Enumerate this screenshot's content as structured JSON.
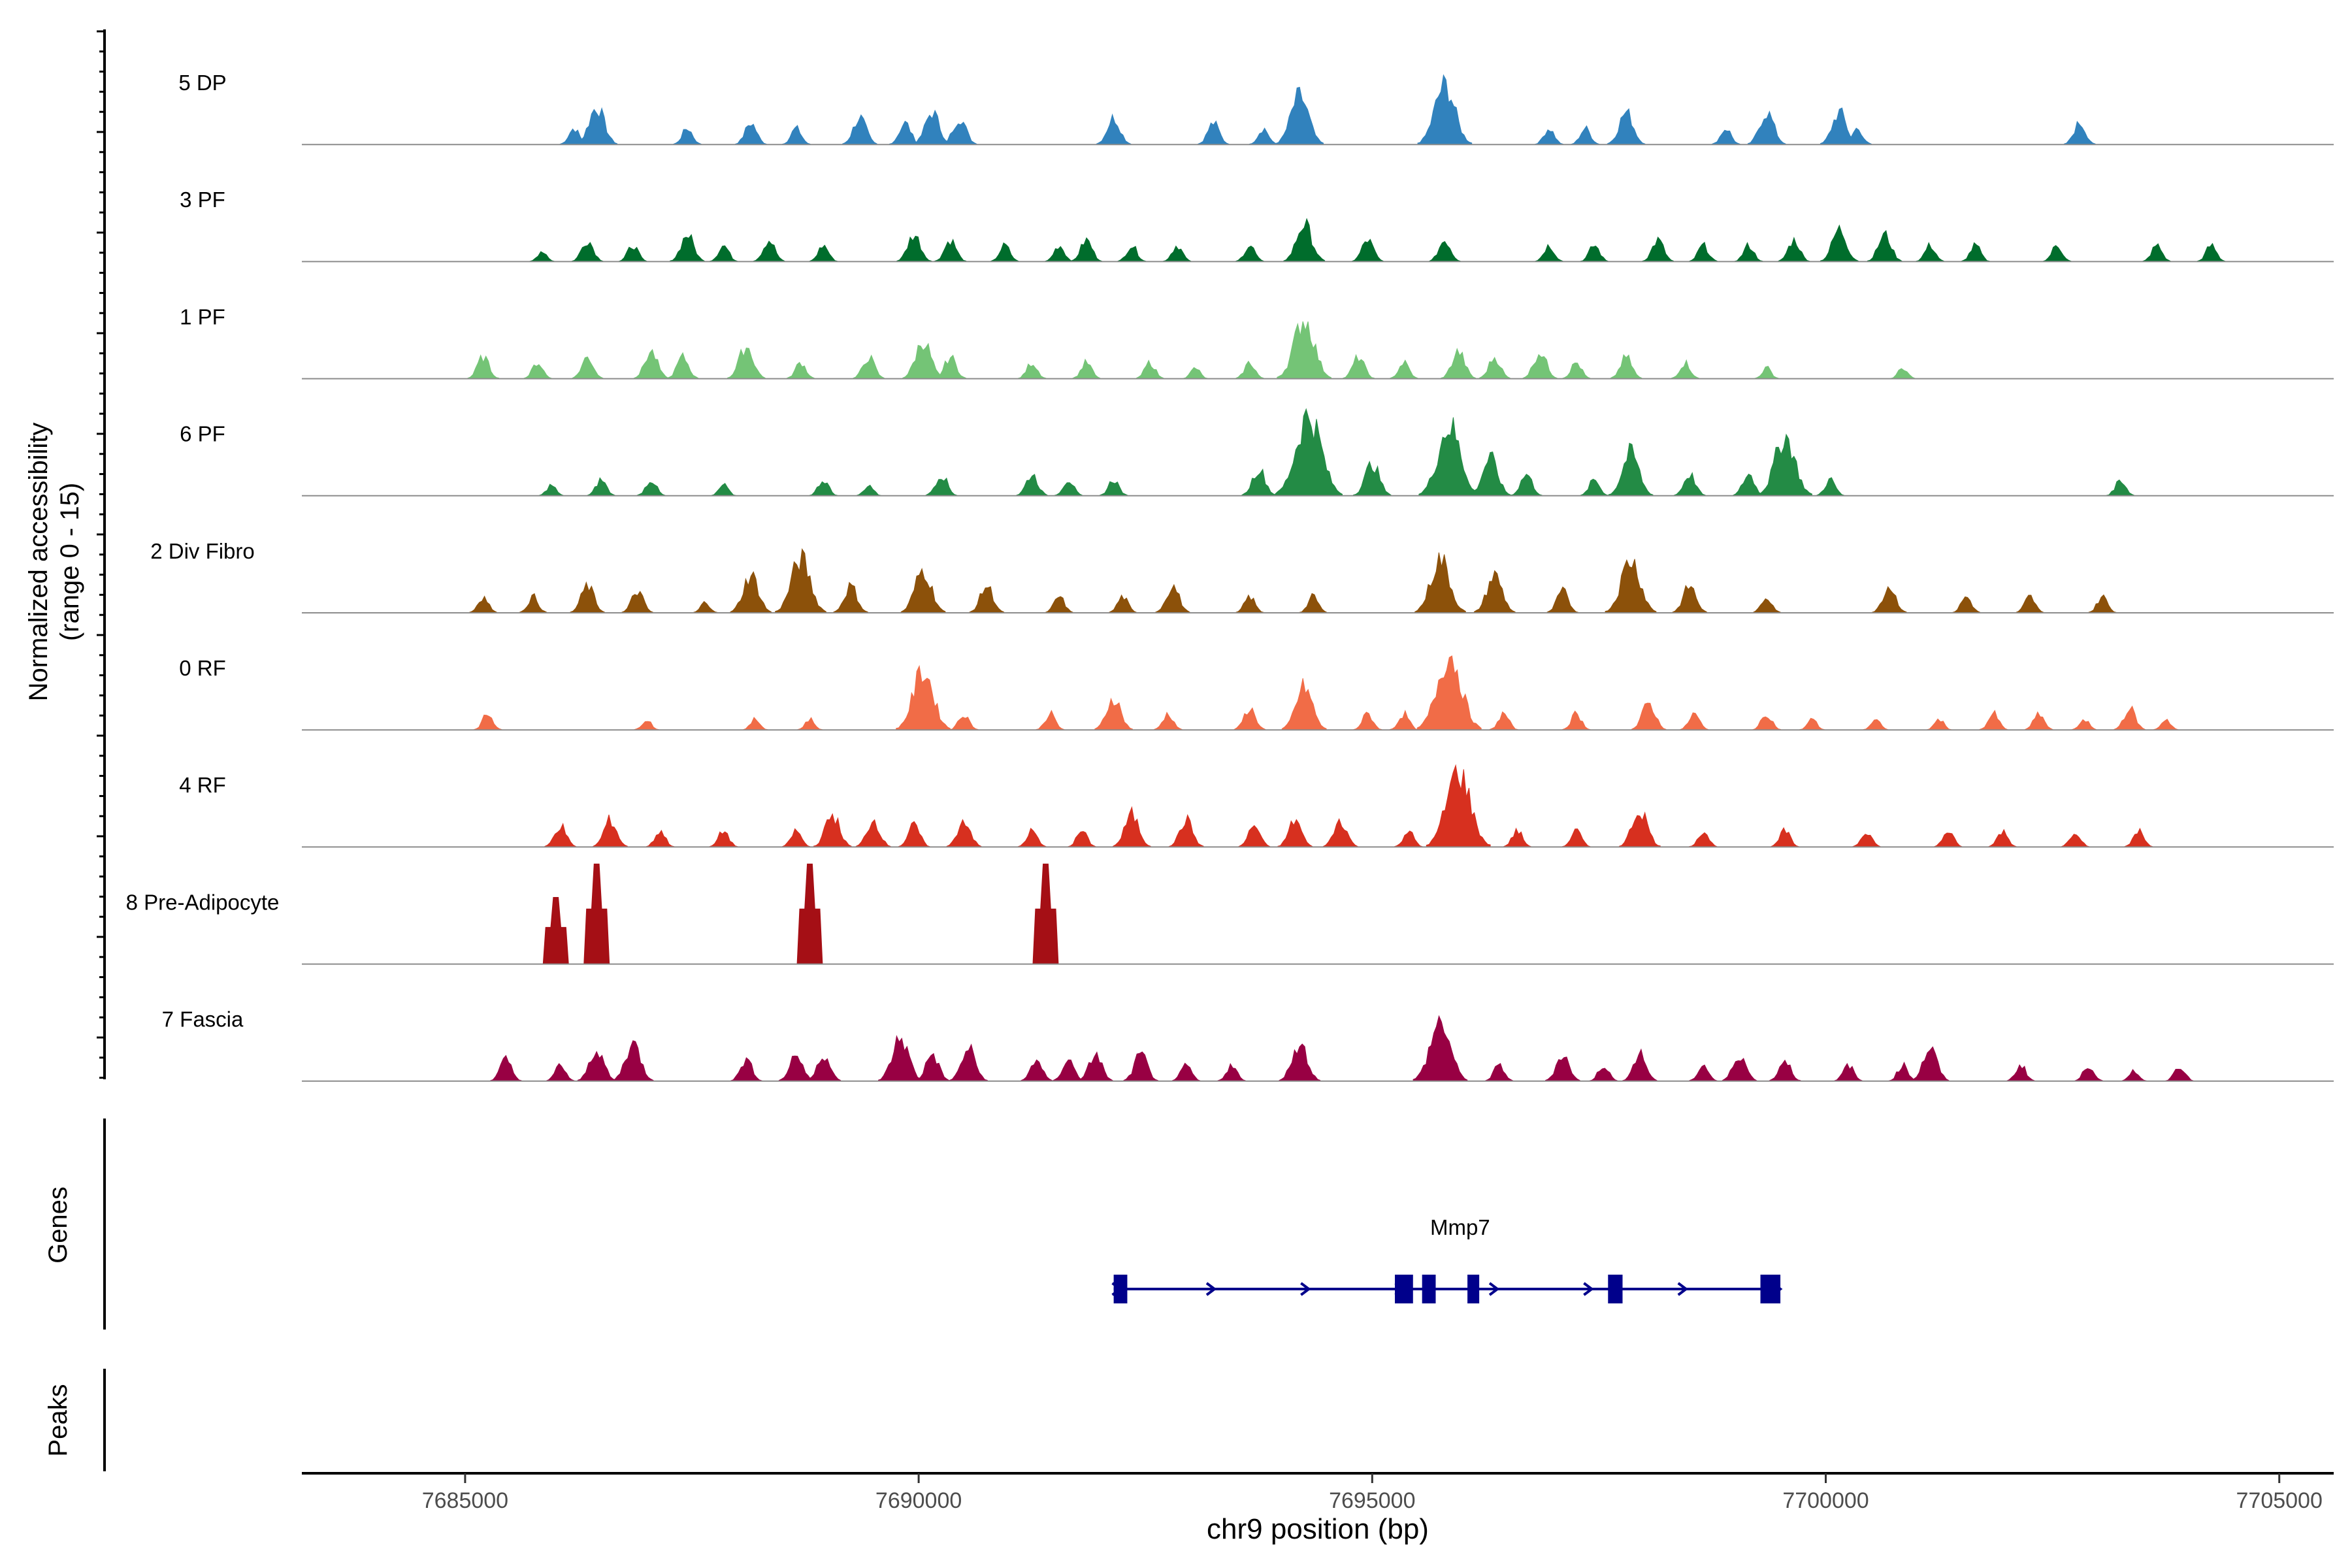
{
  "chart_data": {
    "type": "area",
    "title": "",
    "ylabel_line1": "Normalized accessibility",
    "ylabel_line2": "(range 0 - 15)",
    "xlabel": "chr9 position (bp)",
    "xlim": [
      7683200,
      7705600
    ],
    "ylim": [
      0,
      15
    ],
    "x_ticks": [
      7685000,
      7690000,
      7695000,
      7700000,
      7705000
    ],
    "x_tick_labels": [
      "7685000",
      "7690000",
      "7695000",
      "7700000",
      "7705000"
    ],
    "panel_labels": {
      "genes": "Genes",
      "peaks": "Peaks"
    },
    "series": [
      {
        "name": "5 DP",
        "color": "#3182bd",
        "peaks": [
          [
            7686200,
            3
          ],
          [
            7686450,
            7
          ],
          [
            7687450,
            3
          ],
          [
            7688150,
            4
          ],
          [
            7688650,
            3
          ],
          [
            7689350,
            5
          ],
          [
            7689850,
            4
          ],
          [
            7690150,
            6
          ],
          [
            7690450,
            5
          ],
          [
            7692150,
            5
          ],
          [
            7693250,
            4
          ],
          [
            7693800,
            3
          ],
          [
            7694200,
            9
          ],
          [
            7695800,
            11
          ],
          [
            7696950,
            3
          ],
          [
            7697350,
            3
          ],
          [
            7697800,
            6
          ],
          [
            7698900,
            3
          ],
          [
            7699350,
            6
          ],
          [
            7700150,
            6
          ],
          [
            7700350,
            3
          ],
          [
            7702800,
            4
          ]
        ]
      },
      {
        "name": "3 PF",
        "color": "#006d2c",
        "peaks": [
          [
            7685850,
            2
          ],
          [
            7686350,
            4
          ],
          [
            7686850,
            3
          ],
          [
            7687450,
            5
          ],
          [
            7687850,
            3
          ],
          [
            7688350,
            4
          ],
          [
            7688950,
            3
          ],
          [
            7689950,
            5
          ],
          [
            7690350,
            4
          ],
          [
            7690950,
            3
          ],
          [
            7691550,
            3
          ],
          [
            7691850,
            4
          ],
          [
            7692350,
            3
          ],
          [
            7692850,
            3
          ],
          [
            7693650,
            3
          ],
          [
            7694250,
            7
          ],
          [
            7694950,
            4
          ],
          [
            7695800,
            4
          ],
          [
            7696950,
            3
          ],
          [
            7697450,
            3
          ],
          [
            7698150,
            4
          ],
          [
            7698650,
            3
          ],
          [
            7699150,
            3
          ],
          [
            7699650,
            4
          ],
          [
            7700150,
            6
          ],
          [
            7700650,
            5
          ],
          [
            7701150,
            3
          ],
          [
            7701650,
            3
          ],
          [
            7702550,
            3
          ],
          [
            7703650,
            3
          ],
          [
            7704250,
            3
          ]
        ]
      },
      {
        "name": "1 PF",
        "color": "#74c476",
        "peaks": [
          [
            7685200,
            4
          ],
          [
            7685800,
            3
          ],
          [
            7686350,
            4
          ],
          [
            7687050,
            5
          ],
          [
            7687400,
            4
          ],
          [
            7688100,
            6
          ],
          [
            7688700,
            3
          ],
          [
            7689450,
            4
          ],
          [
            7690050,
            7
          ],
          [
            7690350,
            4
          ],
          [
            7691250,
            3
          ],
          [
            7691850,
            3
          ],
          [
            7692550,
            3
          ],
          [
            7693050,
            2
          ],
          [
            7693650,
            3
          ],
          [
            7694250,
            11
          ],
          [
            7694850,
            4
          ],
          [
            7695350,
            3
          ],
          [
            7695950,
            5
          ],
          [
            7696350,
            4
          ],
          [
            7696850,
            5
          ],
          [
            7697250,
            3
          ],
          [
            7697800,
            4
          ],
          [
            7698450,
            3
          ],
          [
            7699350,
            2
          ],
          [
            7700850,
            2
          ]
        ]
      },
      {
        "name": "6 PF",
        "color": "#238b45",
        "peaks": [
          [
            7685950,
            2
          ],
          [
            7686500,
            3
          ],
          [
            7687050,
            3
          ],
          [
            7687850,
            2
          ],
          [
            7688950,
            3
          ],
          [
            7689450,
            2
          ],
          [
            7690250,
            4
          ],
          [
            7691250,
            4
          ],
          [
            7691650,
            3
          ],
          [
            7692150,
            3
          ],
          [
            7693750,
            5
          ],
          [
            7694300,
            15
          ],
          [
            7695000,
            6
          ],
          [
            7695850,
            13
          ],
          [
            7696300,
            7
          ],
          [
            7696700,
            4
          ],
          [
            7697450,
            3
          ],
          [
            7697850,
            8
          ],
          [
            7698500,
            4
          ],
          [
            7699150,
            4
          ],
          [
            7699550,
            11
          ],
          [
            7700050,
            3
          ],
          [
            7703250,
            3
          ]
        ]
      },
      {
        "name": "2 Div Fibro",
        "color": "#8c510a",
        "peaks": [
          [
            7685200,
            3
          ],
          [
            7685750,
            3
          ],
          [
            7686350,
            5
          ],
          [
            7686900,
            4
          ],
          [
            7687650,
            2
          ],
          [
            7688150,
            7
          ],
          [
            7688700,
            10
          ],
          [
            7689250,
            5
          ],
          [
            7690050,
            8
          ],
          [
            7690750,
            5
          ],
          [
            7691550,
            3
          ],
          [
            7692250,
            3
          ],
          [
            7692800,
            5
          ],
          [
            7693650,
            3
          ],
          [
            7694350,
            3
          ],
          [
            7695750,
            10
          ],
          [
            7696350,
            7
          ],
          [
            7697100,
            4
          ],
          [
            7697850,
            10
          ],
          [
            7698500,
            5
          ],
          [
            7699350,
            3
          ],
          [
            7700700,
            5
          ],
          [
            7701550,
            3
          ],
          [
            7702250,
            3
          ],
          [
            7703050,
            3
          ]
        ]
      },
      {
        "name": "0 RF",
        "color": "#f16c47",
        "peaks": [
          [
            7685250,
            3
          ],
          [
            7687000,
            2
          ],
          [
            7688200,
            2
          ],
          [
            7688800,
            2
          ],
          [
            7690050,
            11
          ],
          [
            7690500,
            3
          ],
          [
            7691450,
            3
          ],
          [
            7692150,
            6
          ],
          [
            7692750,
            3
          ],
          [
            7693650,
            4
          ],
          [
            7694250,
            8
          ],
          [
            7694950,
            3
          ],
          [
            7695350,
            3
          ],
          [
            7695850,
            14
          ],
          [
            7696450,
            3
          ],
          [
            7697250,
            3
          ],
          [
            7698050,
            5
          ],
          [
            7698550,
            3
          ],
          [
            7699350,
            3
          ],
          [
            7699850,
            2
          ],
          [
            7700550,
            2
          ],
          [
            7701250,
            2
          ],
          [
            7701850,
            3
          ],
          [
            7702350,
            3
          ],
          [
            7702850,
            2
          ],
          [
            7703350,
            4
          ],
          [
            7703750,
            2
          ]
        ]
      },
      {
        "name": "4 RF",
        "color": "#d7301f",
        "peaks": [
          [
            7686050,
            4
          ],
          [
            7686600,
            5
          ],
          [
            7687150,
            3
          ],
          [
            7687850,
            3
          ],
          [
            7688650,
            3
          ],
          [
            7689050,
            6
          ],
          [
            7689500,
            5
          ],
          [
            7689950,
            4
          ],
          [
            7690500,
            5
          ],
          [
            7691250,
            3
          ],
          [
            7691800,
            3
          ],
          [
            7692350,
            6
          ],
          [
            7692950,
            5
          ],
          [
            7693700,
            4
          ],
          [
            7694150,
            5
          ],
          [
            7694650,
            5
          ],
          [
            7695400,
            3
          ],
          [
            7695950,
            14
          ],
          [
            7696600,
            3
          ],
          [
            7697250,
            3
          ],
          [
            7697950,
            7
          ],
          [
            7698650,
            3
          ],
          [
            7699550,
            3
          ],
          [
            7700450,
            3
          ],
          [
            7701350,
            3
          ],
          [
            7701950,
            3
          ],
          [
            7702750,
            3
          ],
          [
            7703450,
            3
          ]
        ]
      },
      {
        "name": "8 Pre-Adipocyte",
        "color": "#a50f15",
        "peaks": [
          [
            7686000,
            10
          ],
          [
            7686450,
            15
          ],
          [
            7688800,
            15
          ],
          [
            7691400,
            15
          ]
        ]
      },
      {
        "name": "7 Fascia",
        "color": "#980043",
        "peaks": [
          [
            7685450,
            4
          ],
          [
            7686050,
            3
          ],
          [
            7686450,
            6
          ],
          [
            7686850,
            7
          ],
          [
            7688100,
            4
          ],
          [
            7688650,
            5
          ],
          [
            7688950,
            5
          ],
          [
            7689800,
            8
          ],
          [
            7690150,
            5
          ],
          [
            7690550,
            6
          ],
          [
            7691300,
            4
          ],
          [
            7691650,
            4
          ],
          [
            7691950,
            5
          ],
          [
            7692450,
            5
          ],
          [
            7692950,
            3
          ],
          [
            7693450,
            3
          ],
          [
            7694200,
            7
          ],
          [
            7695750,
            11
          ],
          [
            7696400,
            3
          ],
          [
            7697100,
            5
          ],
          [
            7697550,
            3
          ],
          [
            7697950,
            5
          ],
          [
            7698650,
            3
          ],
          [
            7699050,
            5
          ],
          [
            7699550,
            4
          ],
          [
            7700250,
            3
          ],
          [
            7700850,
            3
          ],
          [
            7701150,
            6
          ],
          [
            7702150,
            3
          ],
          [
            7702900,
            3
          ],
          [
            7703400,
            2
          ],
          [
            7703900,
            3
          ]
        ]
      }
    ],
    "gene": {
      "name": "Mmp7",
      "color": "#00008b",
      "start": 7692150,
      "end": 7699500,
      "strand": "+",
      "exons": [
        [
          7692150,
          7692300
        ],
        [
          7695250,
          7695450
        ],
        [
          7695550,
          7695700
        ],
        [
          7696050,
          7696180
        ],
        [
          7697600,
          7697760
        ],
        [
          7699280,
          7699500
        ]
      ]
    }
  }
}
